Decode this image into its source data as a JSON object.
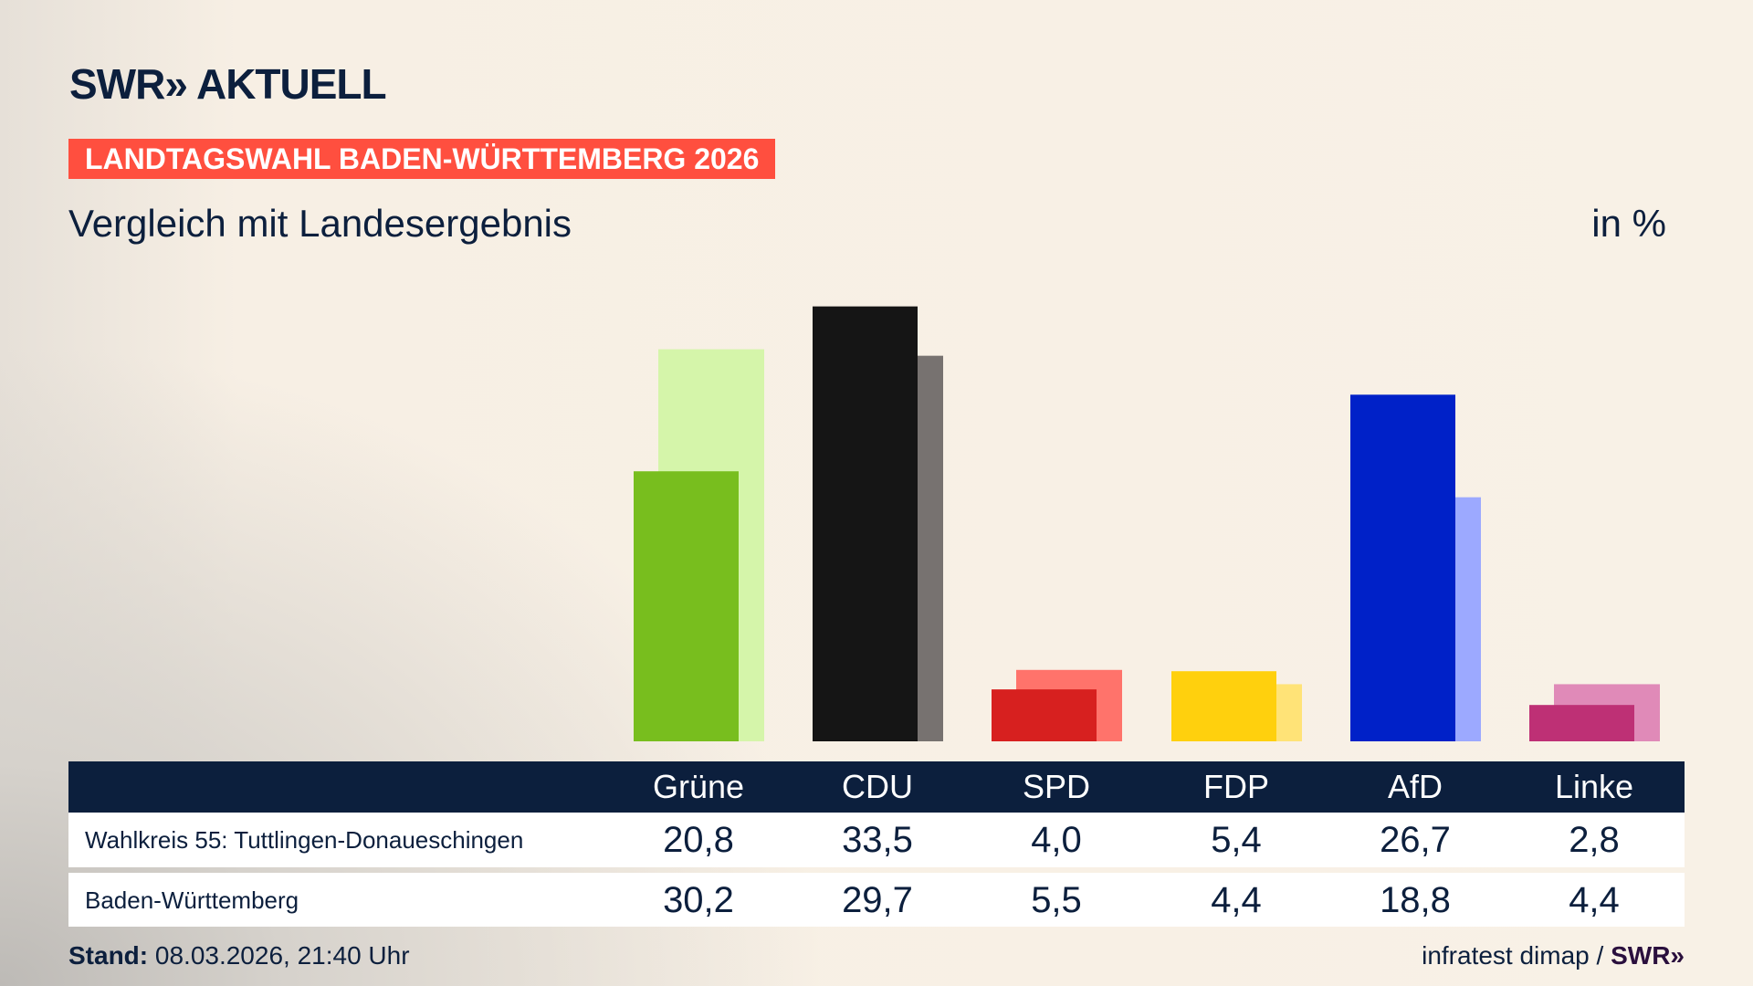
{
  "header": {
    "logo": "SWR» AKTUELL",
    "banner": "LANDTAGSWAHL BADEN-WÜRTTEMBERG 2026",
    "subtitle": "Vergleich mit Landesergebnis",
    "unit": "in %"
  },
  "chart_data": {
    "type": "bar",
    "title": "Vergleich mit Landesergebnis",
    "ylabel": "in %",
    "ylim": [
      0,
      35
    ],
    "grid": false,
    "categories": [
      "Grüne",
      "CDU",
      "SPD",
      "FDP",
      "AfD",
      "Linke"
    ],
    "series": [
      {
        "name": "Wahlkreis 55: Tuttlingen-Donaueschingen",
        "values": [
          20.8,
          33.5,
          4.0,
          5.4,
          26.7,
          2.8
        ],
        "colors": [
          "#78be1e",
          "#151515",
          "#d7201f",
          "#ffd00d",
          "#0021c8",
          "#be3075"
        ]
      },
      {
        "name": "Baden-Württemberg",
        "values": [
          30.2,
          29.7,
          5.5,
          4.4,
          18.8,
          4.4
        ],
        "colors": [
          "#d5f5aa",
          "#777270",
          "#ff736b",
          "#ffe377",
          "#9ca9ff",
          "#e08ab8"
        ]
      }
    ]
  },
  "table": {
    "headers": [
      "Grüne",
      "CDU",
      "SPD",
      "FDP",
      "AfD",
      "Linke"
    ],
    "rows": [
      {
        "label": "Wahlkreis 55: Tuttlingen-Donaueschingen",
        "values": [
          "20,8",
          "33,5",
          "4,0",
          "5,4",
          "26,7",
          "2,8"
        ]
      },
      {
        "label": "Baden-Württemberg",
        "values": [
          "30,2",
          "29,7",
          "5,5",
          "4,4",
          "18,8",
          "4,4"
        ]
      }
    ]
  },
  "footer": {
    "stand_label": "Stand:",
    "stand_value": "08.03.2026, 21:40 Uhr",
    "source": "infratest dimap /",
    "source_logo": "SWR»"
  },
  "colors": {
    "navy": "#0c1f3d",
    "banner": "#ff4f3f",
    "background": "#f8f1e6"
  }
}
